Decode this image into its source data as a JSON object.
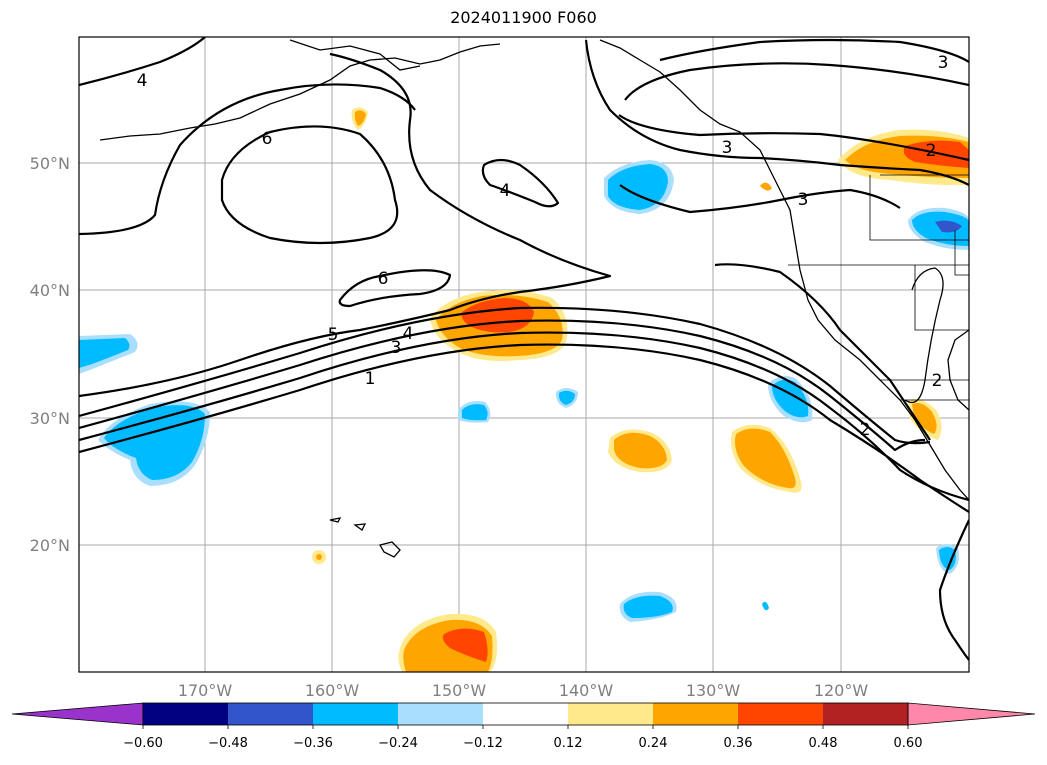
{
  "title": "2024011900 F060",
  "lat_labels": [
    "50°N",
    "40°N",
    "30°N",
    "20°N"
  ],
  "lon_labels": [
    "170°W",
    "160°W",
    "150°W",
    "140°W",
    "130°W",
    "120°W"
  ],
  "colorbar": {
    "colors": [
      "#9933cc",
      "#000080",
      "#3355cc",
      "#00bbff",
      "#aadeff",
      "#ffffff",
      "#ffe98a",
      "#ffa500",
      "#ff4500",
      "#b22222",
      "#ff88aa"
    ],
    "tick_labels": [
      "−0.60",
      "−0.48",
      "−0.36",
      "−0.24",
      "−0.12",
      "0.12",
      "0.24",
      "0.36",
      "0.48",
      "0.60"
    ]
  },
  "contour_labels": [
    "4",
    "6",
    "6",
    "4",
    "5",
    "4",
    "3",
    "1",
    "3",
    "3",
    "3",
    "2",
    "2",
    "2"
  ]
}
